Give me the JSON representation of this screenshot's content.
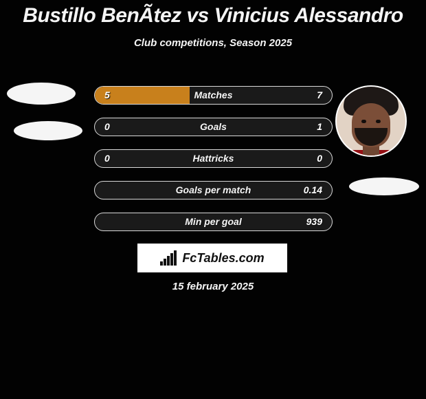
{
  "title": "Bustillo BenÃ­tez vs Vinicius Alessandro",
  "subtitle": "Club competitions, Season 2025",
  "date": "15 february 2025",
  "branding": {
    "text": "FcTables.com",
    "icon_color": "#111111"
  },
  "colors": {
    "background": "#020202",
    "row_border": "#dadada",
    "row_bg": "#1a1a1a",
    "left_fill": "#c8801c",
    "right_fill": "#c8801c",
    "text": "#f6f6f6"
  },
  "stats": [
    {
      "label": "Matches",
      "left_value": "5",
      "right_value": "7",
      "left_pct": 40,
      "right_pct": 0
    },
    {
      "label": "Goals",
      "left_value": "0",
      "right_value": "1",
      "left_pct": 0,
      "right_pct": 0
    },
    {
      "label": "Hattricks",
      "left_value": "0",
      "right_value": "0",
      "left_pct": 0,
      "right_pct": 0
    },
    {
      "label": "Goals per match",
      "left_value": "",
      "right_value": "0.14",
      "left_pct": 0,
      "right_pct": 0
    },
    {
      "label": "Min per goal",
      "left_value": "",
      "right_value": "939",
      "left_pct": 0,
      "right_pct": 0
    }
  ],
  "players": {
    "left": {
      "name": "Bustillo BenÃ­tez"
    },
    "right": {
      "name": "Vinicius Alessandro"
    }
  }
}
